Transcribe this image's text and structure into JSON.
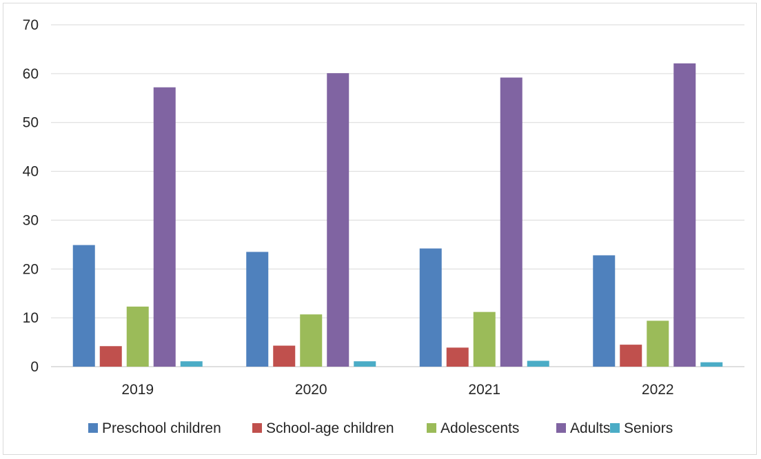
{
  "chart_data": {
    "type": "bar",
    "title": "",
    "xlabel": "",
    "ylabel": "",
    "ylim": [
      0,
      70
    ],
    "yticks": [
      "0",
      "10",
      "20",
      "30",
      "40",
      "50",
      "60",
      "70"
    ],
    "grid": true,
    "legend_position": "bottom",
    "categories": [
      "2019",
      "2020",
      "2021",
      "2022"
    ],
    "series": [
      {
        "name": "Preschool children",
        "color": "#4f81bd",
        "values": [
          24.9,
          23.5,
          24.2,
          22.8
        ]
      },
      {
        "name": "School-age children",
        "color": "#c0504d",
        "values": [
          4.2,
          4.3,
          3.9,
          4.5
        ]
      },
      {
        "name": "Adolescents",
        "color": "#9bbb59",
        "values": [
          12.3,
          10.7,
          11.2,
          9.4
        ]
      },
      {
        "name": "Adults",
        "color": "#8064a2",
        "values": [
          57.2,
          60.1,
          59.2,
          62.1
        ]
      },
      {
        "name": "Seniors",
        "color": "#4bacc6",
        "values": [
          1.1,
          1.1,
          1.2,
          0.9
        ]
      }
    ]
  }
}
